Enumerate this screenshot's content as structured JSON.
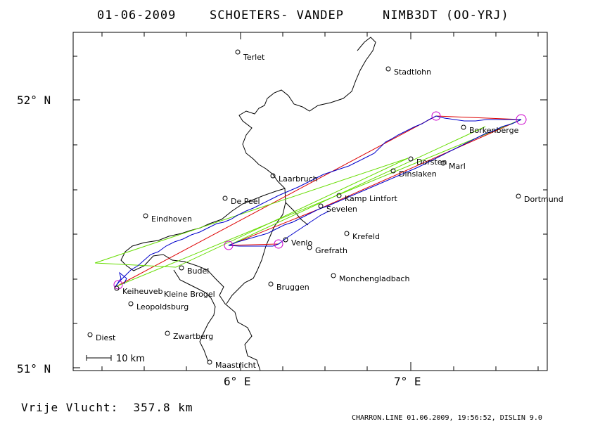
{
  "title": {
    "date": "01-06-2009",
    "pilot": "SCHOETERS- VANDEP",
    "glider": "NIMB3DT (OO-YRJ)"
  },
  "axis": {
    "lat_labels": [
      "52° N",
      "51° N"
    ],
    "lon_labels": [
      "6° E",
      "7° E"
    ]
  },
  "scale_bar": {
    "label": "10 km"
  },
  "footer": {
    "left": "Vrije Vlucht:  357.8 km",
    "right": "CHARRON.LINE 01.06.2009, 19:56:52, DISLIN 9.0"
  },
  "places": [
    {
      "name": "Terlet"
    },
    {
      "name": "Stadtlohn"
    },
    {
      "name": "Borkenberge"
    },
    {
      "name": "Dorsten"
    },
    {
      "name": "Marl"
    },
    {
      "name": "Dinslaken"
    },
    {
      "name": "Laarbruch"
    },
    {
      "name": "De Peel"
    },
    {
      "name": "Kamp Lintfort"
    },
    {
      "name": "Dortmund"
    },
    {
      "name": "Sevelen"
    },
    {
      "name": "Eindhoven"
    },
    {
      "name": "Krefeld"
    },
    {
      "name": "Venlo"
    },
    {
      "name": "Grefrath"
    },
    {
      "name": "Budel"
    },
    {
      "name": "Monchengladbach"
    },
    {
      "name": "Keiheuveb"
    },
    {
      "name": "Kleine Brogel"
    },
    {
      "name": "Bruggen"
    },
    {
      "name": "Leopoldsburg"
    },
    {
      "name": "Diest"
    },
    {
      "name": "Zwartberg"
    },
    {
      "name": "Maastricht"
    }
  ],
  "colors": {
    "track": "#0000cc",
    "task_line": "#dd0000",
    "sector_line": "#66dd00",
    "turnpoint": "#cc00cc",
    "frame": "#000000",
    "border": "#000000"
  }
}
